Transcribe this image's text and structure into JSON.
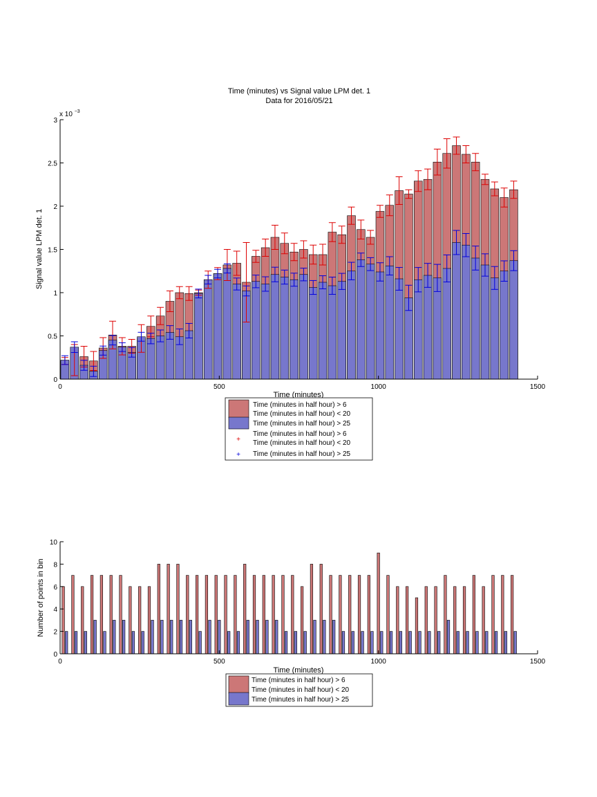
{
  "colors": {
    "series1": "#cc7777",
    "series2": "#7777cc",
    "err1": "#dd0000",
    "err2": "#0000dd"
  },
  "chart_data": [
    {
      "type": "bar",
      "title": [
        "Time (minutes) vs Signal value LPM det. 1",
        "Data for 2016/05/21"
      ],
      "xlabel": "Time (minutes)",
      "ylabel": "Signal value LPM det. 1",
      "exponent_base": "x 10",
      "exponent_power": "−3",
      "xlim": [
        0,
        1500
      ],
      "ylim": [
        0,
        3
      ],
      "xticks": [
        "0",
        "500",
        "1000",
        "1500"
      ],
      "yticks": [
        "0",
        "0.5",
        "1",
        "1.5",
        "2",
        "2.5",
        "3"
      ],
      "x": [
        15,
        45,
        75,
        105,
        135,
        165,
        195,
        225,
        255,
        285,
        315,
        345,
        375,
        405,
        435,
        465,
        495,
        525,
        555,
        585,
        615,
        645,
        675,
        705,
        735,
        765,
        795,
        825,
        855,
        885,
        915,
        945,
        975,
        1005,
        1035,
        1065,
        1095,
        1125,
        1155,
        1185,
        1215,
        1245,
        1275,
        1305,
        1335,
        1365,
        1395,
        1425
      ],
      "series": [
        {
          "name": "Time (minutes in half hour) > 6 Time (minutes in half hour) < 20",
          "values": [
            0.21,
            0.22,
            0.26,
            0.21,
            0.36,
            0.51,
            0.38,
            0.38,
            0.47,
            0.61,
            0.73,
            0.9,
            1.0,
            0.99,
            1.0,
            1.15,
            1.22,
            1.32,
            1.34,
            1.12,
            1.42,
            1.52,
            1.64,
            1.57,
            1.47,
            1.5,
            1.44,
            1.44,
            1.7,
            1.67,
            1.89,
            1.73,
            1.64,
            1.94,
            2.01,
            2.18,
            2.14,
            2.29,
            2.31,
            2.51,
            2.61,
            2.7,
            2.6,
            2.51,
            2.31,
            2.2,
            2.1,
            2.19
          ],
          "errors": [
            0.04,
            0.18,
            0.12,
            0.11,
            0.12,
            0.16,
            0.1,
            0.08,
            0.16,
            0.12,
            0.1,
            0.12,
            0.07,
            0.08,
            0.03,
            0.1,
            0.07,
            0.18,
            0.14,
            0.46,
            0.07,
            0.1,
            0.14,
            0.12,
            0.1,
            0.1,
            0.11,
            0.12,
            0.11,
            0.1,
            0.1,
            0.11,
            0.08,
            0.07,
            0.12,
            0.16,
            0.05,
            0.12,
            0.12,
            0.15,
            0.17,
            0.1,
            0.1,
            0.1,
            0.06,
            0.08,
            0.11,
            0.1
          ]
        },
        {
          "name": "Time (minutes in half hour) > 25",
          "values": [
            0.22,
            0.37,
            0.16,
            0.09,
            0.33,
            0.45,
            0.37,
            0.31,
            0.49,
            0.47,
            0.5,
            0.54,
            0.49,
            0.56,
            0.99,
            1.15,
            1.22,
            1.28,
            1.1,
            1.02,
            1.13,
            1.1,
            1.21,
            1.18,
            1.15,
            1.21,
            1.06,
            1.12,
            1.08,
            1.13,
            1.25,
            1.38,
            1.33,
            1.24,
            1.31,
            1.16,
            0.94,
            1.15,
            1.2,
            1.17,
            1.28,
            1.58,
            1.55,
            1.4,
            1.32,
            1.17,
            1.25,
            1.37
          ]
        }
      ],
      "legend": [
        "Time (minutes in half hour) > 6",
        "Time (minutes in half hour) < 20",
        "Time (minutes in half hour) > 25",
        "Time (minutes in half hour) > 6",
        "Time (minutes in half hour) < 20",
        "Time (minutes in half hour) > 25"
      ],
      "legend_position": "below-plot"
    },
    {
      "type": "bar",
      "xlabel": "Time (minutes)",
      "ylabel": "Number of points in bin",
      "xlim": [
        0,
        1500
      ],
      "ylim": [
        0,
        10
      ],
      "xticks": [
        "0",
        "500",
        "1000",
        "1500"
      ],
      "yticks": [
        "0",
        "2",
        "4",
        "6",
        "8",
        "10"
      ],
      "x": [
        15,
        45,
        75,
        105,
        135,
        165,
        195,
        225,
        255,
        285,
        315,
        345,
        375,
        405,
        435,
        465,
        495,
        525,
        555,
        585,
        615,
        645,
        675,
        705,
        735,
        765,
        795,
        825,
        855,
        885,
        915,
        945,
        975,
        1005,
        1035,
        1065,
        1095,
        1125,
        1155,
        1185,
        1215,
        1245,
        1275,
        1305,
        1335,
        1365,
        1395,
        1425
      ],
      "series": [
        {
          "name": "Time (minutes in half hour) > 6 Time (minutes in half hour) < 20",
          "values": [
            6,
            7,
            6,
            7,
            7,
            7,
            7,
            6,
            6,
            6,
            8,
            8,
            8,
            7,
            7,
            7,
            7,
            7,
            7,
            8,
            7,
            7,
            7,
            7,
            7,
            6,
            8,
            8,
            7,
            7,
            7,
            7,
            7,
            9,
            7,
            6,
            6,
            5,
            6,
            6,
            7,
            6,
            6,
            7,
            6,
            7,
            7,
            7
          ]
        },
        {
          "name": "Time (minutes in half hour) > 25",
          "values": [
            2,
            2,
            2,
            3,
            2,
            3,
            3,
            2,
            2,
            3,
            3,
            3,
            3,
            3,
            2,
            3,
            3,
            2,
            2,
            3,
            3,
            3,
            3,
            2,
            2,
            2,
            3,
            3,
            3,
            2,
            2,
            2,
            2,
            2,
            2,
            2,
            2,
            2,
            2,
            2,
            3,
            2,
            2,
            2,
            2,
            2,
            2,
            2
          ]
        }
      ],
      "legend": [
        "Time (minutes in half hour) > 6",
        "Time (minutes in half hour) < 20",
        "Time (minutes in half hour) > 25"
      ],
      "legend_position": "below-plot"
    }
  ]
}
